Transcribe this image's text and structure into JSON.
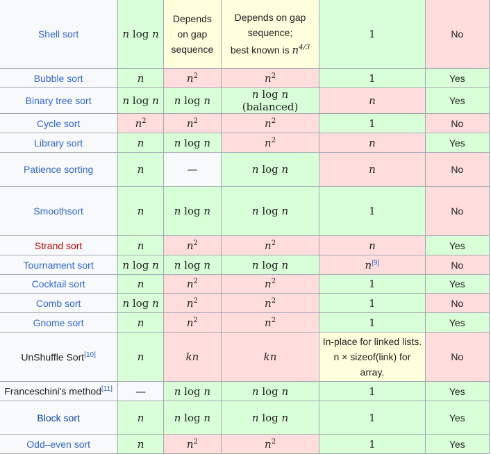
{
  "table": {
    "rows": [
      {
        "name": "Shell sort",
        "name_color": "blue",
        "best": "n log n",
        "average": "Depends on gap sequence",
        "worst": "Depends on gap sequence; best known is n^4/3",
        "memory": "1",
        "stable": "No",
        "colors": [
          "g",
          "y",
          "y",
          "g",
          "r"
        ]
      },
      {
        "name": "Bubble sort",
        "name_color": "blue",
        "best": "n",
        "average": "n²",
        "worst": "n²",
        "memory": "1",
        "stable": "Yes",
        "colors": [
          "g",
          "r",
          "r",
          "g",
          "g"
        ]
      },
      {
        "name": "Binary tree sort",
        "name_color": "blue",
        "best": "n log n",
        "average": "n log n",
        "worst": "n log n (balanced)",
        "memory": "n",
        "stable": "Yes",
        "colors": [
          "g",
          "g",
          "g",
          "r",
          "g"
        ]
      },
      {
        "name": "Cycle sort",
        "name_color": "blue",
        "best": "n²",
        "average": "n²",
        "worst": "n²",
        "memory": "1",
        "stable": "No",
        "colors": [
          "r",
          "r",
          "r",
          "g",
          "r"
        ]
      },
      {
        "name": "Library sort",
        "name_color": "blue",
        "best": "n",
        "average": "n log n",
        "worst": "n²",
        "memory": "n",
        "stable": "Yes",
        "colors": [
          "g",
          "g",
          "r",
          "r",
          "g"
        ]
      },
      {
        "name": "Patience sorting",
        "name_color": "blue",
        "best": "n",
        "average": "—",
        "worst": "n log n",
        "memory": "n",
        "stable": "No",
        "colors": [
          "g",
          "n",
          "g",
          "r",
          "r"
        ]
      },
      {
        "name": "Smoothsort",
        "name_color": "blue",
        "best": "n",
        "average": "n log n",
        "worst": "n log n",
        "memory": "1",
        "stable": "No",
        "colors": [
          "g",
          "g",
          "g",
          "g",
          "r"
        ]
      },
      {
        "name": "Strand sort",
        "name_color": "red",
        "best": "n",
        "average": "n²",
        "worst": "n²",
        "memory": "n",
        "stable": "Yes",
        "colors": [
          "g",
          "r",
          "r",
          "r",
          "g"
        ]
      },
      {
        "name": "Tournament sort",
        "name_color": "blue",
        "best": "n log n",
        "average": "n log n",
        "worst": "n log n",
        "memory": "n",
        "memory_ref": "[9]",
        "stable": "No",
        "colors": [
          "g",
          "g",
          "g",
          "r",
          "r"
        ]
      },
      {
        "name": "Cocktail sort",
        "name_color": "blue",
        "best": "n",
        "average": "n²",
        "worst": "n²",
        "memory": "1",
        "stable": "Yes",
        "colors": [
          "g",
          "r",
          "r",
          "g",
          "g"
        ]
      },
      {
        "name": "Comb sort",
        "name_color": "blue",
        "best": "n log n",
        "average": "n²",
        "worst": "n²",
        "memory": "1",
        "stable": "No",
        "colors": [
          "g",
          "r",
          "r",
          "g",
          "r"
        ]
      },
      {
        "name": "Gnome sort",
        "name_color": "blue",
        "best": "n",
        "average": "n²",
        "worst": "n²",
        "memory": "1",
        "stable": "Yes",
        "colors": [
          "g",
          "r",
          "r",
          "g",
          "g"
        ]
      },
      {
        "name": "UnShuffle Sort",
        "name_ref": "[10]",
        "name_color": "dark",
        "best": "n",
        "average": "kn",
        "worst": "kn",
        "memory": "In-place for linked lists. n × sizeof(link) for array.",
        "stable": "No",
        "colors": [
          "g",
          "r",
          "r",
          "y",
          "r"
        ]
      },
      {
        "name": "Franceschini's method",
        "name_ref": "[11]",
        "name_color": "dark",
        "best": "—",
        "average": "n log n",
        "worst": "n log n",
        "memory": "1",
        "stable": "Yes",
        "colors": [
          "n",
          "g",
          "g",
          "g",
          "g"
        ]
      },
      {
        "name": "Block sort",
        "name_color": "navy",
        "best": "n",
        "average": "n log n",
        "worst": "n log n",
        "memory": "1",
        "stable": "Yes",
        "colors": [
          "g",
          "g",
          "g",
          "g",
          "g"
        ]
      },
      {
        "name": "Odd–even sort",
        "name_color": "blue",
        "best": "n",
        "average": "n²",
        "worst": "n²",
        "memory": "1",
        "stable": "Yes",
        "colors": [
          "g",
          "r",
          "r",
          "g",
          "g"
        ]
      }
    ]
  }
}
